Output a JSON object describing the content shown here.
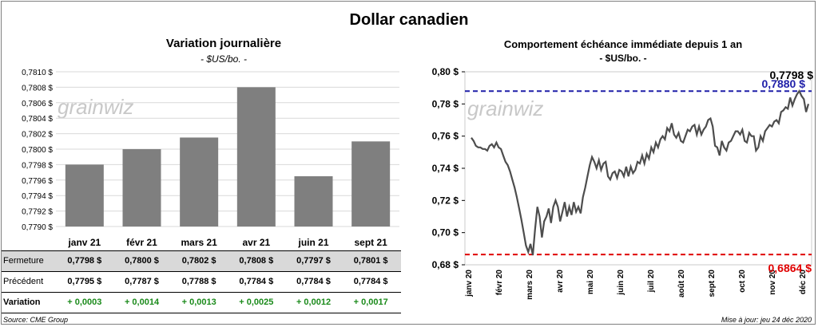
{
  "header": {
    "title": "Dollar canadien"
  },
  "left_chart": {
    "title": "Variation  journalière",
    "unit": "- $US/bo. -"
  },
  "right_chart": {
    "title": "Comportement échéance immédiate depuis 1 an",
    "unit": "- $US/bo. -",
    "last_label": "0,7798 $",
    "high_label": "0,7880 $",
    "low_label": "0,6864 $"
  },
  "watermark": "grainwiz",
  "table": {
    "row_labels": {
      "fermeture": "Fermeture",
      "precedent": "Précédent",
      "variation": "Variation"
    },
    "fermeture": [
      "0,7798  $",
      "0,7800  $",
      "0,7802  $",
      "0,7808  $",
      "0,7797  $",
      "0,7801  $"
    ],
    "precedent": [
      "0,7795  $",
      "0,7787  $",
      "0,7788  $",
      "0,7784  $",
      "0,7784  $",
      "0,7784  $"
    ],
    "variation": [
      "+ 0,0003",
      "+ 0,0014",
      "+ 0,0013",
      "+ 0,0025",
      "+ 0,0012",
      "+ 0,0017"
    ]
  },
  "footer": {
    "source": "Source: CME Group",
    "updated": "Mise à jour: jeu 24 déc 2020"
  },
  "colors": {
    "bar": "#7f7f7f",
    "line": "#4d4d4d",
    "high": "#1f1fa8",
    "low": "#e00000",
    "positive": "#1a8a1a"
  },
  "chart_data": [
    {
      "type": "bar",
      "categories": [
        "janv 21",
        "févr 21",
        "mars 21",
        "avr 21",
        "juin 21",
        "sept 21"
      ],
      "values": [
        0.7798,
        0.78,
        0.78015,
        0.7808,
        0.77965,
        0.7801
      ],
      "ylim": [
        0.779,
        0.781
      ],
      "yticks": [
        "0,7790 $",
        "0,7792 $",
        "0,7794 $",
        "0,7796 $",
        "0,7798 $",
        "0,7800 $",
        "0,7802 $",
        "0,7804 $",
        "0,7806 $",
        "0,7808 $",
        "0,7810 $"
      ],
      "grid": true
    },
    {
      "type": "line",
      "x_labels": [
        "janv 20",
        "févr 20",
        "mars 20",
        "avr 20",
        "mai 20",
        "juin 20",
        "juil 20",
        "août 20",
        "sept 20",
        "oct 20",
        "nov 20",
        "déc 20"
      ],
      "ylim": [
        0.68,
        0.8
      ],
      "yticks": [
        "0,68 $",
        "0,70 $",
        "0,72 $",
        "0,74 $",
        "0,76 $",
        "0,78 $",
        "0,80 $"
      ],
      "high": 0.788,
      "low": 0.6864,
      "last": 0.7798,
      "values": [
        0.759,
        0.757,
        0.754,
        0.753,
        0.753,
        0.752,
        0.752,
        0.751,
        0.754,
        0.755,
        0.753,
        0.756,
        0.753,
        0.752,
        0.748,
        0.744,
        0.742,
        0.738,
        0.733,
        0.728,
        0.722,
        0.715,
        0.708,
        0.7,
        0.692,
        0.688,
        0.693,
        0.686,
        0.702,
        0.716,
        0.71,
        0.697,
        0.707,
        0.71,
        0.715,
        0.706,
        0.716,
        0.72,
        0.716,
        0.707,
        0.713,
        0.719,
        0.71,
        0.716,
        0.711,
        0.719,
        0.713,
        0.716,
        0.712,
        0.722,
        0.728,
        0.735,
        0.742,
        0.747,
        0.744,
        0.74,
        0.745,
        0.739,
        0.743,
        0.744,
        0.735,
        0.733,
        0.737,
        0.738,
        0.734,
        0.739,
        0.738,
        0.735,
        0.741,
        0.735,
        0.741,
        0.737,
        0.739,
        0.744,
        0.743,
        0.748,
        0.743,
        0.749,
        0.746,
        0.753,
        0.75,
        0.756,
        0.753,
        0.758,
        0.76,
        0.758,
        0.765,
        0.763,
        0.768,
        0.761,
        0.759,
        0.762,
        0.757,
        0.756,
        0.76,
        0.764,
        0.763,
        0.766,
        0.767,
        0.761,
        0.766,
        0.761,
        0.764,
        0.766,
        0.77,
        0.771,
        0.766,
        0.754,
        0.753,
        0.748,
        0.757,
        0.753,
        0.751,
        0.756,
        0.757,
        0.76,
        0.763,
        0.763,
        0.761,
        0.764,
        0.757,
        0.756,
        0.762,
        0.76,
        0.76,
        0.751,
        0.753,
        0.76,
        0.757,
        0.763,
        0.765,
        0.767,
        0.766,
        0.769,
        0.77,
        0.768,
        0.775,
        0.776,
        0.778,
        0.777,
        0.784,
        0.779,
        0.783,
        0.786,
        0.788,
        0.785,
        0.783,
        0.775,
        0.78
      ]
    }
  ]
}
